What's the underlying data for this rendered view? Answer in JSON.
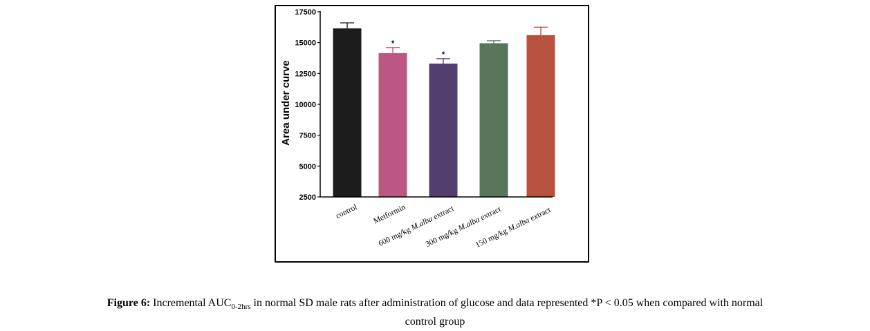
{
  "chart_data": {
    "type": "bar",
    "ylabel": "Area under curve",
    "xlabel": "",
    "ylim": [
      2500,
      17500
    ],
    "yticks": [
      2500,
      5000,
      7500,
      10000,
      12500,
      15000,
      17500
    ],
    "categories": [
      {
        "prefix": "control",
        "italic": "",
        "suffix": ""
      },
      {
        "prefix": "Metformin",
        "italic": "",
        "suffix": ""
      },
      {
        "prefix": "600 mg/kg ",
        "italic": "M.alba",
        "suffix": " extract"
      },
      {
        "prefix": "300 mg/kg ",
        "italic": "M.alba",
        "suffix": " extract"
      },
      {
        "prefix": "150 mg/kg ",
        "italic": "M.alba",
        "suffix": " extract"
      }
    ],
    "values": [
      16150,
      14150,
      13300,
      14950,
      15600
    ],
    "errors": [
      450,
      450,
      400,
      200,
      650
    ],
    "significance": [
      "",
      "*",
      "*",
      "",
      ""
    ],
    "colors": [
      "#1c1c1c",
      "#bc5782",
      "#533f6f",
      "#57765a",
      "#b8513e"
    ]
  },
  "caption": {
    "label": "Figure 6:",
    "text_before_sub": " Incremental AUC",
    "sub": "0-2hrs",
    "text_after_sub": " in normal SD male rats after administration of glucose and data represented *P < 0.05 when compared with normal",
    "line2": "control group"
  }
}
